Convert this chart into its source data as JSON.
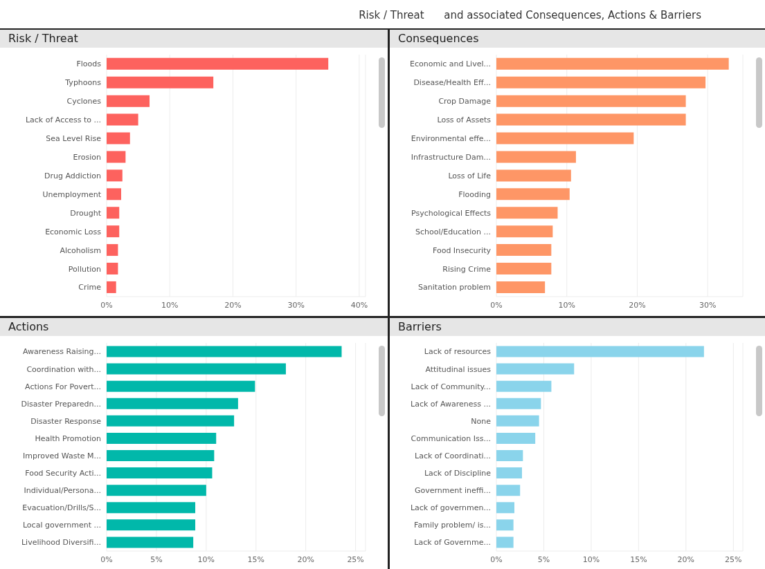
{
  "chart_data": [
    {
      "type": "bar",
      "orientation": "horizontal",
      "title": "Risk / Threat",
      "annotations": [
        "Risk / Threat      and associated Consequences, Actions & Barriers"
      ],
      "categories": [
        "Floods",
        "Typhoons",
        "Cyclones",
        "Lack of Access to ...",
        "Sea Level Rise",
        "Erosion",
        "Drug Addiction",
        "Unemployment",
        "Drought",
        "Economic Loss",
        "Alcoholism",
        "Pollution",
        "Crime"
      ],
      "values": [
        35.1,
        16.9,
        6.8,
        5.0,
        3.7,
        3.0,
        2.5,
        2.3,
        2.0,
        2.0,
        1.8,
        1.8,
        1.5
      ],
      "color": "#fd625e",
      "xlim": [
        0,
        41
      ],
      "xticks": [
        {
          "value": 0,
          "label": "0%"
        },
        {
          "value": 10,
          "label": "10%"
        },
        {
          "value": 20,
          "label": "20%"
        },
        {
          "value": 30,
          "label": "30%"
        },
        {
          "value": 40,
          "label": "40%"
        }
      ],
      "grid": "x"
    },
    {
      "type": "bar",
      "orientation": "horizontal",
      "title": "Consequences",
      "categories": [
        "Economic and Livel...",
        "Disease/Health Eff...",
        "Crop Damage",
        "Loss of Assets",
        "Environmental effe...",
        "Infrastructure Dam...",
        "Loss of Life",
        "Flooding",
        "Psychological Effects",
        "School/Education ...",
        "Food Insecurity",
        "Rising Crime",
        "Sanitation problem"
      ],
      "values": [
        33.0,
        29.7,
        26.9,
        26.9,
        19.5,
        11.3,
        10.6,
        10.4,
        8.7,
        8.0,
        7.8,
        7.8,
        6.9
      ],
      "color": "#fe9666",
      "xlim": [
        0,
        35
      ],
      "xticks": [
        {
          "value": 0,
          "label": "0%"
        },
        {
          "value": 10,
          "label": "10%"
        },
        {
          "value": 20,
          "label": "20%"
        },
        {
          "value": 30,
          "label": "30%"
        }
      ],
      "grid": "x"
    },
    {
      "type": "bar",
      "orientation": "horizontal",
      "title": "Actions",
      "categories": [
        "Awareness Raising...",
        "Coordination with...",
        "Actions For Povert...",
        "Disaster Preparedn...",
        "Disaster Response",
        "Health Promotion",
        "Improved Waste M...",
        "Food Security Acti...",
        "Individual/Persona...",
        "Evacuation/Drills/S...",
        "Local government ...",
        "Livelihood Diversifi..."
      ],
      "values": [
        23.6,
        18.0,
        14.9,
        13.2,
        12.8,
        11.0,
        10.8,
        10.6,
        10.0,
        8.9,
        8.9,
        8.7
      ],
      "color": "#01b8aa",
      "xlim": [
        0,
        26
      ],
      "xticks": [
        {
          "value": 0,
          "label": "0%"
        },
        {
          "value": 5,
          "label": "5%"
        },
        {
          "value": 10,
          "label": "10%"
        },
        {
          "value": 15,
          "label": "15%"
        },
        {
          "value": 20,
          "label": "20%"
        },
        {
          "value": 25,
          "label": "25%"
        }
      ],
      "grid": "x"
    },
    {
      "type": "bar",
      "orientation": "horizontal",
      "title": "Barriers",
      "categories": [
        "Lack of resources",
        "Attitudinal issues",
        "Lack of Community...",
        "Lack of Awareness ...",
        "None",
        "Communication Iss...",
        "Lack of Coordinati...",
        "Lack of Discipline",
        "Government ineffi...",
        "Lack of governmen...",
        "Family problem/ is...",
        "Lack of Governme..."
      ],
      "values": [
        21.9,
        8.2,
        5.8,
        4.7,
        4.5,
        4.1,
        2.8,
        2.7,
        2.5,
        1.9,
        1.8,
        1.8
      ],
      "color": "#8ad4eb",
      "xlim": [
        0,
        26
      ],
      "xticks": [
        {
          "value": 0,
          "label": "0%"
        },
        {
          "value": 5,
          "label": "5%"
        },
        {
          "value": 10,
          "label": "10%"
        },
        {
          "value": 15,
          "label": "15%"
        },
        {
          "value": 20,
          "label": "20%"
        },
        {
          "value": 25,
          "label": "25%"
        }
      ],
      "grid": "x"
    }
  ]
}
